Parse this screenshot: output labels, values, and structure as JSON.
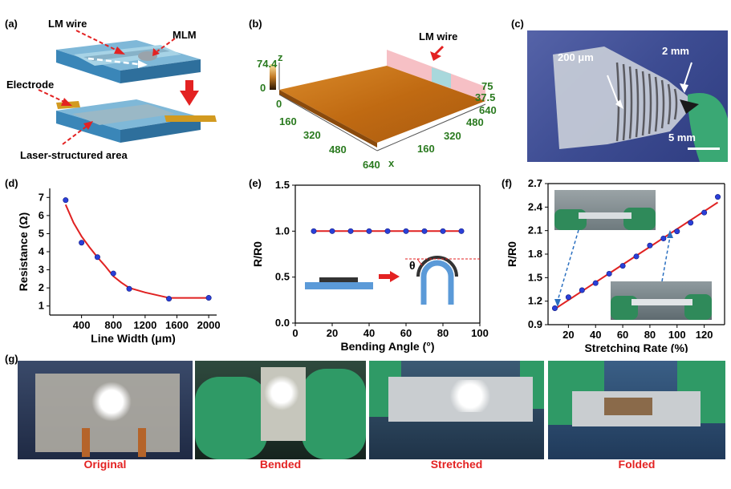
{
  "panels": {
    "a": {
      "label": "(a)",
      "lm_wire": "LM wire",
      "mlm": "MLM",
      "electrode": "Electrode",
      "laser_area": "Laser-structured area"
    },
    "b": {
      "label": "(b)",
      "lm_wire": "LM wire",
      "z_axis": "z",
      "x_axis": "x",
      "z_max": "74.4",
      "z_min": "0",
      "x_ticks": [
        "0",
        "160",
        "320",
        "480",
        "640"
      ],
      "y_ticks": [
        "160",
        "320",
        "480",
        "640"
      ],
      "side_ticks": [
        "75",
        "37.5"
      ]
    },
    "c": {
      "label": "(c)",
      "width_small": "200 μm",
      "width_large": "2 mm",
      "scale": "5 mm"
    },
    "g": {
      "label": "(g)",
      "captions": [
        "Original",
        "Bended",
        "Stretched",
        "Folded"
      ]
    }
  },
  "chart_data": [
    {
      "id": "d",
      "label": "(d)",
      "type": "line",
      "xlabel": "Line Width (μm)",
      "ylabel": "Resistance (Ω)",
      "xlim": [
        0,
        2100
      ],
      "ylim": [
        0.5,
        7.5
      ],
      "xticks": [
        400,
        800,
        1200,
        1600,
        2000
      ],
      "yticks": [
        1,
        2,
        3,
        4,
        5,
        6,
        7
      ],
      "points": [
        [
          200,
          6.85
        ],
        [
          400,
          4.5
        ],
        [
          600,
          3.7
        ],
        [
          800,
          2.8
        ],
        [
          1000,
          1.95
        ],
        [
          1500,
          1.4
        ],
        [
          2000,
          1.45
        ]
      ],
      "fit": [
        [
          200,
          6.6
        ],
        [
          300,
          5.6
        ],
        [
          400,
          4.85
        ],
        [
          500,
          4.25
        ],
        [
          600,
          3.7
        ],
        [
          700,
          3.2
        ],
        [
          800,
          2.65
        ],
        [
          900,
          2.3
        ],
        [
          1000,
          2.0
        ],
        [
          1200,
          1.75
        ],
        [
          1400,
          1.55
        ],
        [
          1500,
          1.45
        ],
        [
          2000,
          1.45
        ]
      ]
    },
    {
      "id": "e",
      "label": "(e)",
      "type": "line",
      "xlabel": "Bending Angle (°)",
      "ylabel": "R/R0",
      "xlim": [
        0,
        100
      ],
      "ylim": [
        0,
        1.5
      ],
      "xticks": [
        0,
        20,
        40,
        60,
        80,
        100
      ],
      "yticks": [
        0.0,
        0.5,
        1.0,
        1.5
      ],
      "ytick_labels": [
        "0.0",
        "0.5",
        "1.0",
        "1.5"
      ],
      "points": [
        [
          10,
          1.0
        ],
        [
          20,
          1.0
        ],
        [
          30,
          1.0
        ],
        [
          40,
          1.0
        ],
        [
          50,
          1.0
        ],
        [
          60,
          1.0
        ],
        [
          70,
          1.0
        ],
        [
          80,
          1.0
        ],
        [
          90,
          1.0
        ]
      ],
      "fit": [
        [
          10,
          1.0
        ],
        [
          90,
          1.0
        ]
      ],
      "inset_symbol": "θ"
    },
    {
      "id": "f",
      "label": "(f)",
      "type": "line",
      "xlabel": "Stretching Rate (%)",
      "ylabel": "R/R0",
      "xlim": [
        5,
        135
      ],
      "ylim": [
        0.9,
        2.7
      ],
      "xticks": [
        20,
        40,
        60,
        80,
        100,
        120
      ],
      "yticks": [
        0.9,
        1.2,
        1.5,
        1.8,
        2.1,
        2.4,
        2.7
      ],
      "ytick_labels": [
        "0.9",
        "1.2",
        "1.5",
        "1.8",
        "2.1",
        "2.4",
        "2.7"
      ],
      "points": [
        [
          10,
          1.11
        ],
        [
          20,
          1.25
        ],
        [
          30,
          1.34
        ],
        [
          40,
          1.43
        ],
        [
          50,
          1.55
        ],
        [
          60,
          1.65
        ],
        [
          70,
          1.77
        ],
        [
          80,
          1.91
        ],
        [
          90,
          2.0
        ],
        [
          100,
          2.09
        ],
        [
          110,
          2.2
        ],
        [
          120,
          2.33
        ],
        [
          130,
          2.53
        ]
      ],
      "fit": [
        [
          10,
          1.1
        ],
        [
          130,
          2.46
        ]
      ]
    }
  ]
}
